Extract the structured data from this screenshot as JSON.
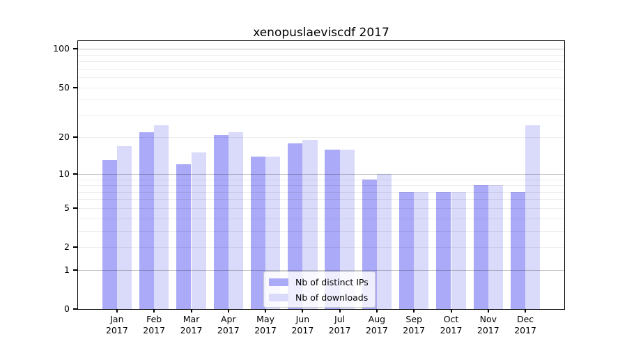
{
  "chart_data": {
    "type": "bar",
    "title": "xenopuslaeviscdf 2017",
    "categories": [
      "Jan",
      "Feb",
      "Mar",
      "Apr",
      "May",
      "Jun",
      "Jul",
      "Aug",
      "Sep",
      "Oct",
      "Nov",
      "Dec"
    ],
    "x_tick_second_line": "2017",
    "series": [
      {
        "name": "Nb of distinct IPs",
        "color": "#aaaaf8",
        "values": [
          13,
          22,
          12,
          21,
          14,
          18,
          16,
          9,
          7,
          7,
          8,
          7
        ]
      },
      {
        "name": "Nb of downloads",
        "color": "#dadafa",
        "values": [
          17,
          25,
          15,
          22,
          14,
          19,
          16,
          10,
          7,
          7,
          8,
          25
        ]
      }
    ],
    "y_axis": {
      "scale": "log1p",
      "tick_labels": [
        "100",
        "50",
        "20",
        "10",
        "5",
        "2",
        "1",
        "0"
      ],
      "tick_values": [
        100,
        50,
        20,
        10,
        5,
        2,
        1,
        0
      ],
      "major_gridlines": [
        1,
        10,
        100
      ],
      "minor_gridlines": [
        2,
        3,
        4,
        5,
        6,
        7,
        8,
        9,
        20,
        30,
        40,
        50,
        60,
        70,
        80,
        90
      ],
      "ylim": [
        0,
        115
      ]
    },
    "legend": {
      "position": "lower center"
    }
  },
  "colors": {
    "axis": "#000000",
    "major_gridline": "rgba(0,0,0,0.24)",
    "minor_gridline": "rgba(0,0,0,0.065)",
    "legend_border": "#cccccc"
  }
}
